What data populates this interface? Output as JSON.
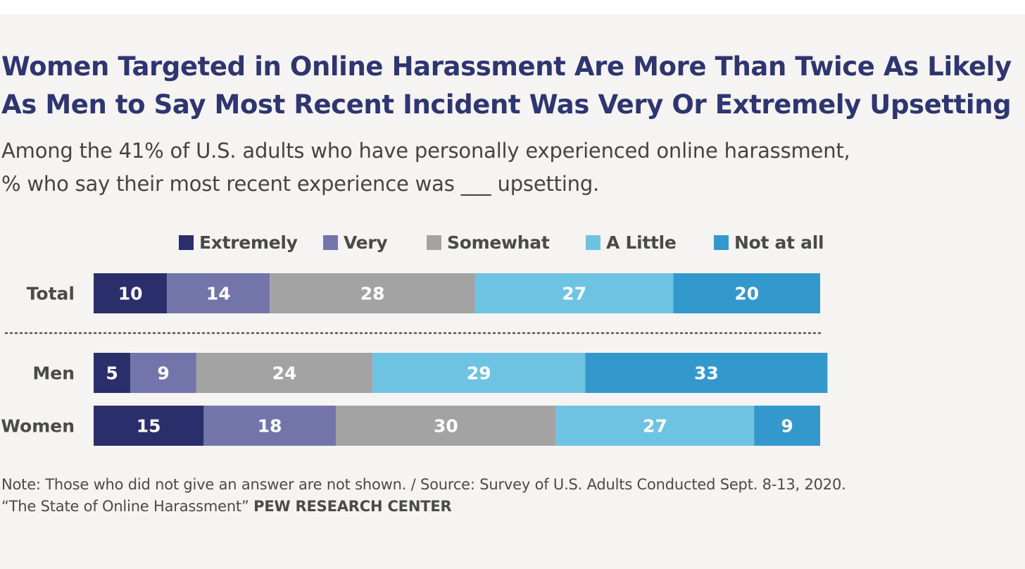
{
  "title": "Women Targeted in Online Harassment Are More Than Twice As Likely\nAs Men to Say Most Recent Incident Was Very Or Extremely Upsetting",
  "subtitle": "Among the 41% of U.S. adults who have personally experienced online harassment,\n% who say their most recent experience was ___ upsetting.",
  "note": {
    "line1": "Note: Those who did not give an answer are not shown.  /  Source: Survey of U.S. Adults Conducted Sept. 8-13, 2020.",
    "line2_source": "“The State of Online Harassment”",
    "org": "PEW RESEARCH CENTER"
  },
  "colors": {
    "background": "#f5f4f2",
    "title": "#2e3570",
    "separator": "#555555",
    "bar_label": "#ffffff"
  },
  "chart_data": {
    "type": "bar",
    "orientation": "horizontal",
    "stacked": true,
    "title": "Women Targeted in Online Harassment Are More Than Twice As Likely As Men to Say Most Recent Incident Was Very Or Extremely Upsetting",
    "categories": [
      "Total",
      "Men",
      "Women"
    ],
    "series": [
      {
        "name": "Extremely",
        "color": "#2a2f6b",
        "values": [
          10,
          5,
          15
        ]
      },
      {
        "name": "Very",
        "color": "#7375aa",
        "values": [
          14,
          9,
          18
        ]
      },
      {
        "name": "Somewhat",
        "color": "#a3a3a3",
        "values": [
          28,
          24,
          30
        ]
      },
      {
        "name": "A Little",
        "color": "#6ec3e2",
        "values": [
          27,
          29,
          27
        ]
      },
      {
        "name": "Not at all",
        "color": "#3399cc",
        "values": [
          20,
          33,
          9
        ]
      }
    ],
    "xlim": [
      0,
      99
    ],
    "legend_position": "top",
    "grid": false,
    "separator_after_category": "Total",
    "data_labels": true
  }
}
